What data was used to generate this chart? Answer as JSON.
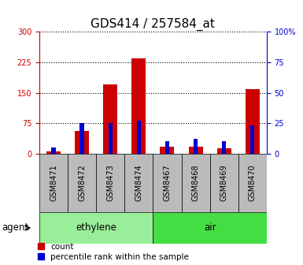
{
  "title": "GDS414 / 257584_at",
  "samples": [
    "GSM8471",
    "GSM8472",
    "GSM8473",
    "GSM8474",
    "GSM8467",
    "GSM8468",
    "GSM8469",
    "GSM8470"
  ],
  "counts": [
    5,
    57,
    170,
    235,
    18,
    17,
    14,
    158
  ],
  "percentiles": [
    5,
    25,
    25,
    27,
    10,
    12,
    10,
    23
  ],
  "groups": [
    {
      "label": "ethylene",
      "start": 0,
      "end": 4,
      "color": "#99ee99"
    },
    {
      "label": "air",
      "start": 4,
      "end": 8,
      "color": "#44dd44"
    }
  ],
  "group_label_prefix": "agent",
  "ylim_left": [
    0,
    300
  ],
  "ylim_right": [
    0,
    100
  ],
  "yticks_left": [
    0,
    75,
    150,
    225,
    300
  ],
  "yticks_right": [
    0,
    25,
    50,
    75,
    100
  ],
  "bar_color_count": "#cc0000",
  "bar_color_pct": "#0000cc",
  "background_plot": "#ffffff",
  "background_xtick": "#bbbbbb",
  "grid_color": "#000000",
  "left_axis_color": "#cc0000",
  "right_axis_color": "#0000cc",
  "title_fontsize": 11,
  "tick_fontsize": 7,
  "legend_fontsize": 7.5,
  "group_fontsize": 8.5
}
